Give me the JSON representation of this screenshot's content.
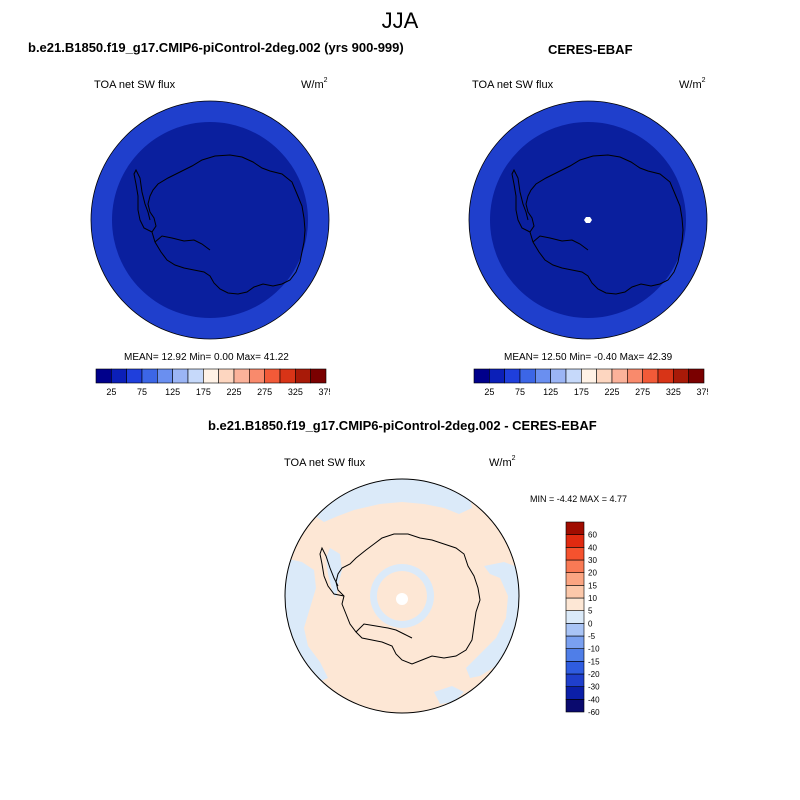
{
  "figure": {
    "season": "JJA",
    "unit_base": "W/m",
    "unit_exp": "2"
  },
  "panels": {
    "model": {
      "title": "b.e21.B1850.f19_g17.CMIP6-piControl-2deg.002 (yrs 900-999)",
      "variable": "TOA net SW flux",
      "stats": "MEAN=  12.92  Min=   0.00  Max=  41.22"
    },
    "obs": {
      "title": "CERES-EBAF",
      "variable": "TOA net SW flux",
      "stats": "MEAN=  12.50  Min=  -0.40  Max=  42.39"
    },
    "diff": {
      "title": "b.e21.B1850.f19_g17.CMIP6-piControl-2deg.002 - CERES-EBAF",
      "variable": "TOA net SW flux",
      "stats": "MIN =  -4.42 MAX =   4.77"
    }
  },
  "colorbars": {
    "abs": {
      "colors": [
        "#00008b",
        "#0b1fb8",
        "#1f3fdc",
        "#3c66e6",
        "#6a8ff0",
        "#9bb5f5",
        "#c6d9fa",
        "#fff2e6",
        "#fdd6c0",
        "#fbb29a",
        "#f98a6c",
        "#f25a38",
        "#d83417",
        "#a81a08",
        "#7a0000"
      ],
      "labels": [
        "25",
        "75",
        "125",
        "175",
        "225",
        "275",
        "325",
        "375"
      ]
    },
    "diff": {
      "colors": [
        "#0a0a6e",
        "#0b1fa8",
        "#1f3fcc",
        "#2f5ce0",
        "#4f7ee8",
        "#7aa0f0",
        "#a9c4f6",
        "#dbeaf9",
        "#fde7d5",
        "#fcc8aa",
        "#fba582",
        "#f97a55",
        "#f5522e",
        "#e02a10",
        "#a00c00"
      ],
      "labels": [
        "-60",
        "-40",
        "-30",
        "-20",
        "-15",
        "-10",
        "-5",
        "0",
        "5",
        "10",
        "15",
        "20",
        "30",
        "40",
        "60"
      ]
    }
  },
  "map_colors": {
    "abs_outer": "#1f3fcc",
    "abs_inner": "#0a1f9e",
    "diff_positive": "#fde7d5",
    "diff_negative": "#dbeaf9"
  }
}
